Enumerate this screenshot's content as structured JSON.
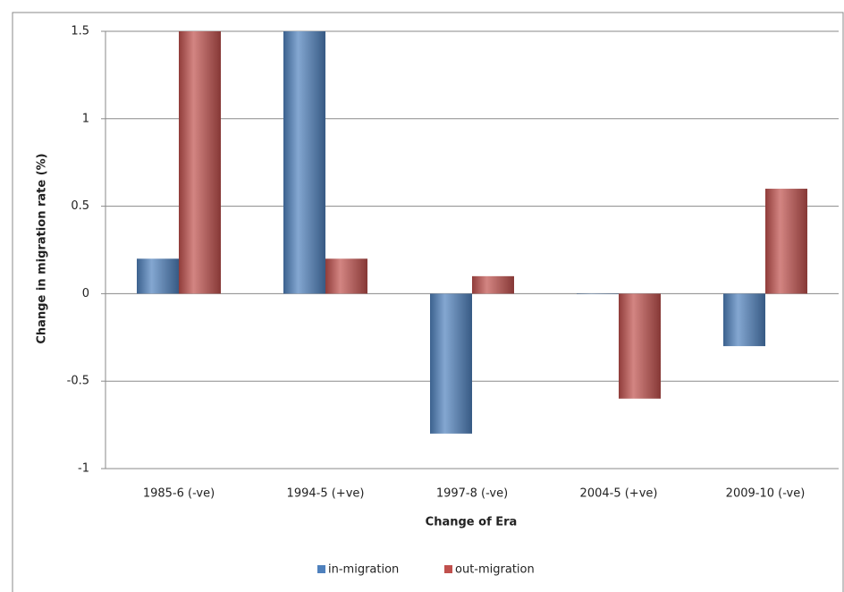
{
  "chart_data": {
    "type": "bar",
    "x_label": "Change of Era",
    "y_label": "Change in migration rate (%)",
    "categories": [
      "1985-6 (-ve)",
      "1994-5 (+ve)",
      "1997-8 (-ve)",
      "2004-5 (+ve)",
      "2009-10 (-ve)"
    ],
    "series": [
      {
        "name": "in-migration",
        "color": "#4f81bd",
        "values": [
          0.2,
          1.5,
          -0.8,
          0,
          -0.3
        ]
      },
      {
        "name": "out-migration",
        "color": "#c0504d",
        "values": [
          1.5,
          0.2,
          0.1,
          -0.6,
          0.6
        ]
      }
    ],
    "ylim": [
      -1,
      1.5
    ],
    "yticks": [
      -1,
      -0.5,
      0,
      0.5,
      1,
      1.5
    ],
    "grid": true,
    "legend": "bottom"
  }
}
